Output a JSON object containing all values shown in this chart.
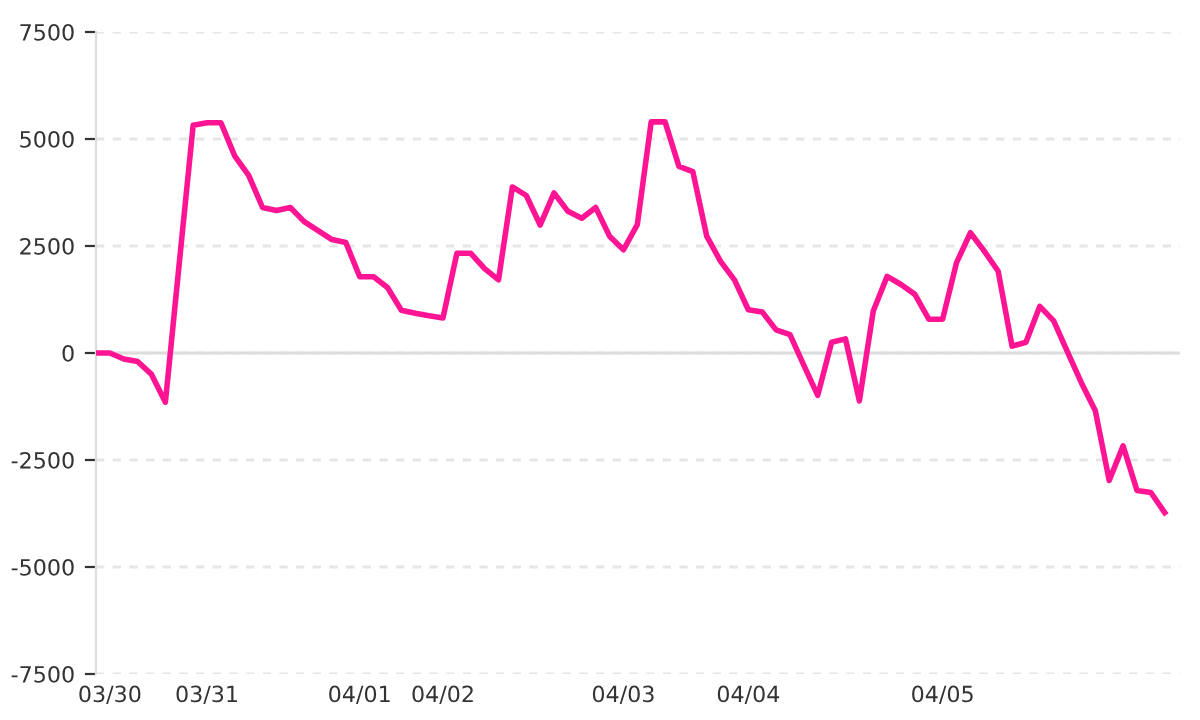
{
  "chart_data": {
    "type": "line",
    "categories": [
      null,
      "03/30",
      null,
      null,
      null,
      null,
      null,
      null,
      "03/31",
      null,
      null,
      null,
      null,
      null,
      null,
      null,
      null,
      null,
      null,
      "04/01",
      null,
      null,
      null,
      null,
      null,
      "04/02",
      null,
      null,
      null,
      null,
      null,
      null,
      null,
      null,
      null,
      null,
      null,
      null,
      "04/03",
      null,
      null,
      null,
      null,
      null,
      null,
      null,
      null,
      "04/04",
      null,
      null,
      null,
      null,
      null,
      null,
      null,
      null,
      null,
      null,
      null,
      null,
      null,
      "04/05",
      null,
      null,
      null,
      null,
      null,
      null,
      null,
      null,
      null,
      null,
      null,
      null,
      null,
      null,
      null,
      null
    ],
    "series": [
      {
        "color": "#ff1493",
        "values": [
          0,
          0,
          -140,
          -200,
          -500,
          -1150,
          2100,
          5320,
          5380,
          5380,
          4600,
          4150,
          3400,
          3330,
          3400,
          3070,
          2860,
          2650,
          2580,
          1780,
          1780,
          1530,
          1000,
          930,
          870,
          820,
          2330,
          2330,
          1970,
          1710,
          3880,
          3680,
          2990,
          3740,
          3310,
          3150,
          3400,
          2730,
          2410,
          3000,
          5400,
          5400,
          4360,
          4240,
          2730,
          2140,
          1710,
          1010,
          960,
          540,
          430,
          -290,
          -990,
          250,
          330,
          -1120,
          980,
          1790,
          1600,
          1370,
          790,
          790,
          2110,
          2810,
          2380,
          1910,
          160,
          250,
          1090,
          750,
          20,
          -700,
          -1350,
          -2980,
          -2170,
          -3210,
          -3260,
          -3730
        ]
      }
    ],
    "ylim": [
      -7500,
      7500
    ],
    "yticks": [
      -7500,
      -5000,
      -2500,
      0,
      2500,
      5000,
      7500
    ],
    "grid": "y",
    "line_style": "solid",
    "ref_lines": [
      {
        "axis": "y",
        "value": 0,
        "color": "#dddddd"
      }
    ]
  }
}
